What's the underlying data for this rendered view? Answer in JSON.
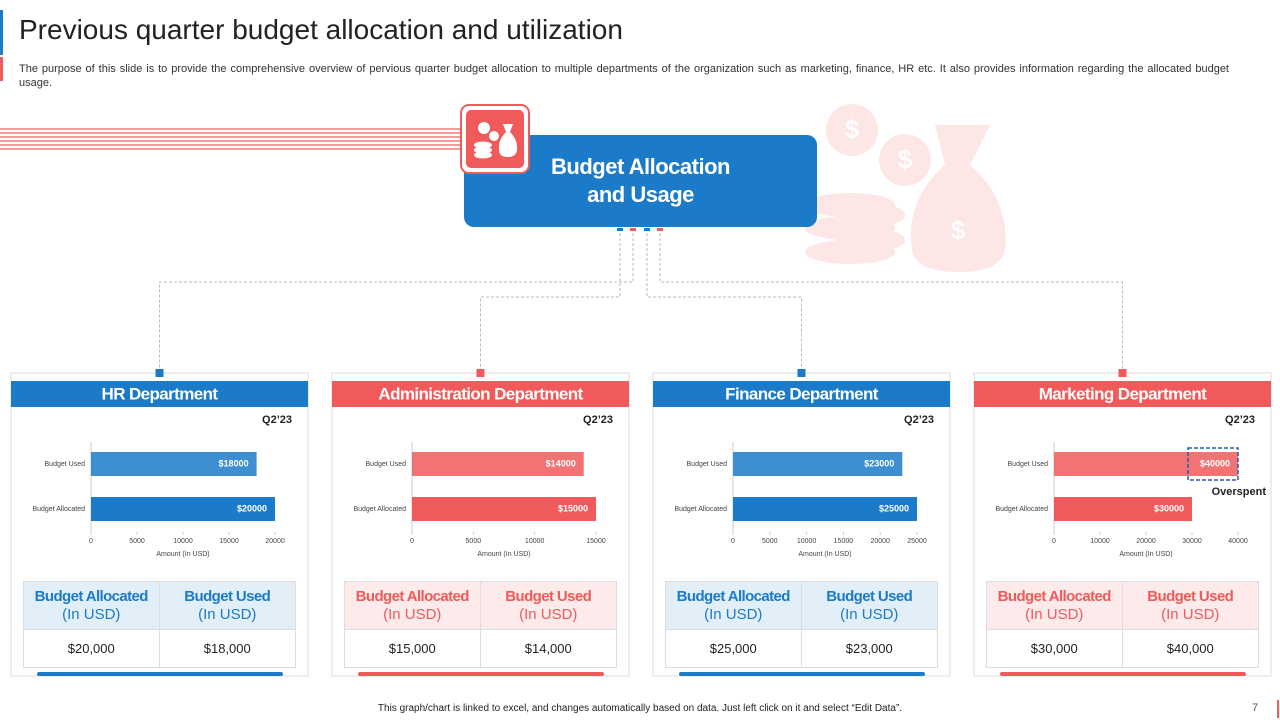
{
  "header": {
    "title": "Previous quarter budget allocation and utilization",
    "description": "The purpose of this slide is to provide the comprehensive overview of pervious quarter budget allocation to multiple departments of the organization such as marketing, finance, HR etc. It also provides information regarding the allocated budget usage."
  },
  "hub": {
    "title": "Budget Allocation and Usage"
  },
  "chart_data": [
    {
      "type": "bar",
      "orientation": "horizontal",
      "title": "HR Department",
      "subtitle": "Q2’23",
      "categories": [
        "Budget Used",
        "Budget Allocated"
      ],
      "values": [
        18000,
        20000
      ],
      "value_labels": [
        "$18000",
        "$20000"
      ],
      "color": "#1b7bc9",
      "xlim": [
        0,
        20000
      ],
      "xticks": [
        0,
        5000,
        10000,
        15000,
        20000
      ],
      "xlabel": "Amount (In USD)"
    },
    {
      "type": "bar",
      "orientation": "horizontal",
      "title": "Administration Department",
      "subtitle": "Q2’23",
      "categories": [
        "Budget Used",
        "Budget Allocated"
      ],
      "values": [
        14000,
        15000
      ],
      "value_labels": [
        "$14000",
        "$15000"
      ],
      "color": "#f05a5a",
      "xlim": [
        0,
        15000
      ],
      "xticks": [
        0,
        5000,
        10000,
        15000
      ],
      "xlabel": "Amount (In USD)"
    },
    {
      "type": "bar",
      "orientation": "horizontal",
      "title": "Finance Department",
      "subtitle": "Q2’23",
      "categories": [
        "Budget Used",
        "Budget Allocated"
      ],
      "values": [
        23000,
        25000
      ],
      "value_labels": [
        "$23000",
        "$25000"
      ],
      "color": "#1b7bc9",
      "xlim": [
        0,
        25000
      ],
      "xticks": [
        0,
        5000,
        10000,
        15000,
        20000,
        25000
      ],
      "xlabel": "Amount (In USD)"
    },
    {
      "type": "bar",
      "orientation": "horizontal",
      "title": "Marketing Department",
      "subtitle": "Q2’23",
      "categories": [
        "Budget Used",
        "Budget Allocated"
      ],
      "values": [
        40000,
        30000
      ],
      "value_labels": [
        "$40000",
        "$30000"
      ],
      "color": "#f05a5a",
      "xlim": [
        0,
        40000
      ],
      "xticks": [
        0,
        10000,
        20000,
        30000,
        40000
      ],
      "xlabel": "Amount (In USD)",
      "annotation": "Overspent"
    }
  ],
  "tables": [
    {
      "headers": [
        [
          "Budget Allocated",
          "(In USD)"
        ],
        [
          "Budget Used",
          "(In USD)"
        ]
      ],
      "row": [
        "$20,000",
        "$18,000"
      ]
    },
    {
      "headers": [
        [
          "Budget Allocated",
          "(In USD)"
        ],
        [
          "Budget Used",
          "(In USD)"
        ]
      ],
      "row": [
        "$15,000",
        "$14,000"
      ]
    },
    {
      "headers": [
        [
          "Budget Allocated",
          "(In USD)"
        ],
        [
          "Budget Used",
          "(In USD)"
        ]
      ],
      "row": [
        "$25,000",
        "$23,000"
      ]
    },
    {
      "headers": [
        [
          "Budget Allocated",
          "(In USD)"
        ],
        [
          "Budget Used",
          "(In USD)"
        ]
      ],
      "row": [
        "$30,000",
        "$40,000"
      ]
    }
  ],
  "footer": {
    "note": "This graph/chart is linked to excel, and changes automatically based on data. Just left click on it and select “Edit Data”.",
    "page": "7"
  }
}
